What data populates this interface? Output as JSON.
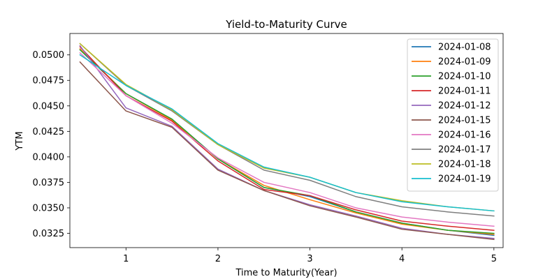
{
  "chart_data": {
    "type": "line",
    "title": "Yield-to-Maturity Curve",
    "xlabel": "Time to Maturity(Year)",
    "ylabel": "YTM",
    "xlim": [
      0.39,
      5.1
    ],
    "ylim": [
      0.0311,
      0.0521
    ],
    "xticks": [
      1,
      2,
      3,
      4,
      5
    ],
    "xtick_labels": [
      "1",
      "2",
      "3",
      "4",
      "5"
    ],
    "yticks": [
      0.0325,
      0.035,
      0.0375,
      0.04,
      0.0425,
      0.045,
      0.0475,
      0.05
    ],
    "ytick_labels": [
      "0.0325",
      "0.0350",
      "0.0375",
      "0.0400",
      "0.0425",
      "0.0450",
      "0.0475",
      "0.0500"
    ],
    "grid": false,
    "legend_position": "top-right",
    "x": [
      0.5,
      1,
      1.5,
      2,
      2.5,
      3,
      3.5,
      4,
      4.5,
      5
    ],
    "series": [
      {
        "name": "2024-01-08",
        "color": "#1f77b4",
        "values": [
          0.0505,
          0.0462,
          0.0437,
          0.0398,
          0.037,
          0.0361,
          0.0346,
          0.0335,
          0.0328,
          0.0323
        ]
      },
      {
        "name": "2024-01-09",
        "color": "#ff7f0e",
        "values": [
          0.0506,
          0.0462,
          0.0436,
          0.0398,
          0.0372,
          0.0358,
          0.0345,
          0.0334,
          0.0328,
          0.0324
        ]
      },
      {
        "name": "2024-01-10",
        "color": "#2ca02c",
        "values": [
          0.0505,
          0.0462,
          0.0437,
          0.0398,
          0.037,
          0.0362,
          0.0346,
          0.0335,
          0.0328,
          0.0325
        ]
      },
      {
        "name": "2024-01-11",
        "color": "#d62728",
        "values": [
          0.0508,
          0.046,
          0.0435,
          0.0396,
          0.0368,
          0.0362,
          0.0348,
          0.0337,
          0.0332,
          0.0328
        ]
      },
      {
        "name": "2024-01-12",
        "color": "#9467bd",
        "values": [
          0.0509,
          0.0448,
          0.043,
          0.0388,
          0.0367,
          0.0353,
          0.0342,
          0.033,
          0.0324,
          0.032
        ]
      },
      {
        "name": "2024-01-15",
        "color": "#8c564b",
        "values": [
          0.0493,
          0.0445,
          0.0429,
          0.0387,
          0.0367,
          0.0352,
          0.0341,
          0.0329,
          0.0324,
          0.0319
        ]
      },
      {
        "name": "2024-01-16",
        "color": "#e377c2",
        "values": [
          0.0502,
          0.046,
          0.0433,
          0.0399,
          0.0375,
          0.0365,
          0.035,
          0.0341,
          0.0336,
          0.0332
        ]
      },
      {
        "name": "2024-01-17",
        "color": "#7f7f7f",
        "values": [
          0.0511,
          0.047,
          0.0445,
          0.0412,
          0.0387,
          0.0377,
          0.0361,
          0.0351,
          0.0346,
          0.0342
        ]
      },
      {
        "name": "2024-01-18",
        "color": "#bcbd22",
        "values": [
          0.0511,
          0.0471,
          0.0446,
          0.0412,
          0.0389,
          0.038,
          0.0365,
          0.0357,
          0.0351,
          0.0347
        ]
      },
      {
        "name": "2024-01-19",
        "color": "#17becf",
        "values": [
          0.05,
          0.047,
          0.0447,
          0.0413,
          0.039,
          0.038,
          0.0365,
          0.0356,
          0.0351,
          0.0347
        ]
      }
    ]
  }
}
